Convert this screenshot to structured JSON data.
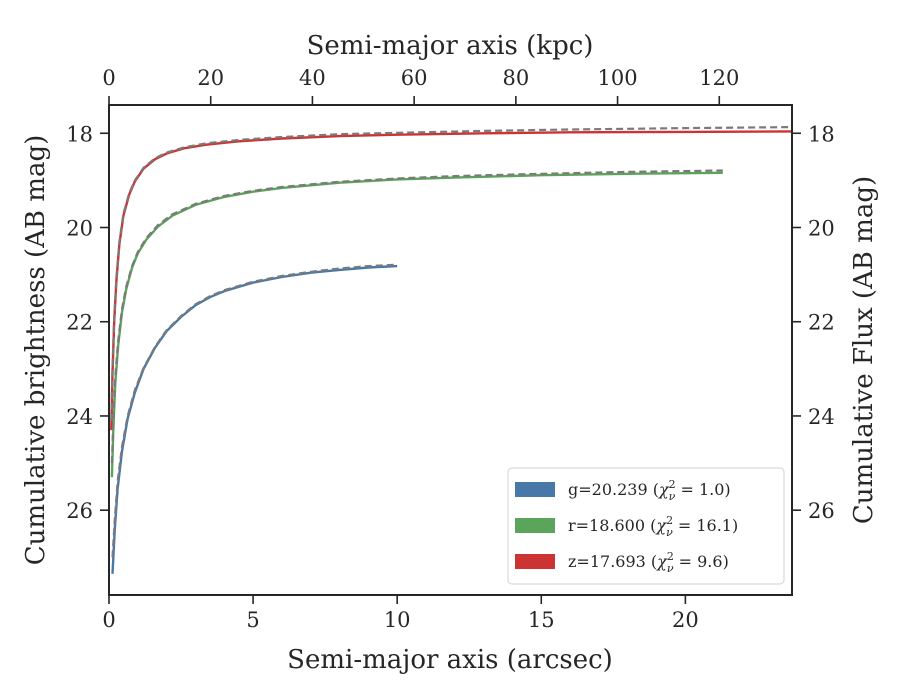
{
  "chart_data": {
    "type": "line",
    "xlabel": "Semi-major axis (arcsec)",
    "ylabel": "Cumulative brightness (AB mag)",
    "x2label": "Semi-major axis (kpc)",
    "y2label": "Cumulative Flux (AB mag)",
    "xlim": [
      0,
      23.7
    ],
    "ylim": [
      27.8,
      17.4
    ],
    "x2lim": [
      0,
      134.3
    ],
    "y_inverted": true,
    "x_ticks": [
      0,
      5,
      10,
      15,
      20
    ],
    "x_tick_labels": [
      "0",
      "5",
      "10",
      "15",
      "20"
    ],
    "x2_ticks": [
      0,
      20,
      40,
      60,
      80,
      100,
      120
    ],
    "x2_tick_labels": [
      "0",
      "20",
      "40",
      "60",
      "80",
      "100",
      "120"
    ],
    "y_ticks": [
      18,
      20,
      22,
      24,
      26
    ],
    "y_tick_labels": [
      "18",
      "20",
      "22",
      "24",
      "26"
    ],
    "grid": false,
    "legend_position": "lower-right",
    "series": [
      {
        "name": "g=20.239",
        "chi_label": "χ²ν = 1.0",
        "color": "#4878a8",
        "x": [
          0.12,
          0.2,
          0.3,
          0.45,
          0.65,
          0.9,
          1.2,
          1.6,
          2.0,
          2.5,
          3.0,
          3.5,
          4.0,
          5.0,
          6.0,
          7.0,
          8.0,
          9.0,
          10.0
        ],
        "y": [
          27.35,
          26.4,
          25.55,
          24.75,
          24.05,
          23.5,
          23.0,
          22.55,
          22.2,
          21.9,
          21.65,
          21.48,
          21.35,
          21.17,
          21.05,
          20.96,
          20.9,
          20.85,
          20.82
        ],
        "model_x": [
          0.12,
          0.2,
          0.3,
          0.45,
          0.65,
          0.9,
          1.2,
          1.6,
          2.0,
          2.5,
          3.0,
          3.5,
          4.0,
          5.0,
          6.0,
          7.0,
          8.0,
          9.0,
          10.0
        ],
        "model_y": [
          27.0,
          26.2,
          25.4,
          24.65,
          24.0,
          23.45,
          22.98,
          22.53,
          22.18,
          21.88,
          21.63,
          21.46,
          21.33,
          21.15,
          21.03,
          20.94,
          20.87,
          20.82,
          20.79
        ]
      },
      {
        "name": "r=18.600",
        "chi_label": "χ²ν = 16.1",
        "color": "#5aa55a",
        "x": [
          0.1,
          0.15,
          0.22,
          0.32,
          0.45,
          0.6,
          0.8,
          1.0,
          1.3,
          1.7,
          2.2,
          3.0,
          4.0,
          5.0,
          6.0,
          8.0,
          10.0,
          12.0,
          15.0,
          18.0,
          21.3
        ],
        "y": [
          25.3,
          24.3,
          23.3,
          22.5,
          21.8,
          21.3,
          20.85,
          20.55,
          20.25,
          19.98,
          19.75,
          19.52,
          19.35,
          19.24,
          19.16,
          19.05,
          18.98,
          18.94,
          18.89,
          18.86,
          18.84
        ],
        "model_x": [
          0.1,
          0.15,
          0.22,
          0.32,
          0.45,
          0.6,
          0.8,
          1.0,
          1.3,
          1.7,
          2.2,
          3.0,
          4.0,
          5.0,
          6.0,
          8.0,
          10.0,
          12.0,
          15.0,
          18.0,
          21.3
        ],
        "model_y": [
          25.0,
          24.1,
          23.15,
          22.4,
          21.73,
          21.25,
          20.82,
          20.52,
          20.22,
          19.95,
          19.72,
          19.5,
          19.33,
          19.22,
          19.14,
          19.03,
          18.96,
          18.91,
          18.86,
          18.82,
          18.79
        ]
      },
      {
        "name": "z=17.693",
        "chi_label": "χ²ν = 9.6",
        "color": "#cc3333",
        "x": [
          0.08,
          0.12,
          0.18,
          0.26,
          0.36,
          0.5,
          0.7,
          0.9,
          1.2,
          1.6,
          2.0,
          2.6,
          3.4,
          4.5,
          6.0,
          8.0,
          10.0,
          13.0,
          16.0,
          20.0,
          23.7
        ],
        "y": [
          24.3,
          23.1,
          22.0,
          21.1,
          20.35,
          19.75,
          19.3,
          19.02,
          18.75,
          18.55,
          18.43,
          18.32,
          18.24,
          18.17,
          18.11,
          18.06,
          18.03,
          18.0,
          17.98,
          17.97,
          17.96
        ],
        "model_x": [
          0.08,
          0.12,
          0.18,
          0.26,
          0.36,
          0.5,
          0.7,
          0.9,
          1.2,
          1.6,
          2.0,
          2.6,
          3.4,
          4.5,
          6.0,
          8.0,
          10.0,
          13.0,
          16.0,
          20.0,
          23.7
        ],
        "model_y": [
          24.1,
          22.95,
          21.9,
          21.03,
          20.3,
          19.71,
          19.27,
          19.0,
          18.73,
          18.53,
          18.41,
          18.3,
          18.21,
          18.14,
          18.08,
          18.02,
          17.99,
          17.95,
          17.92,
          17.89,
          17.87
        ]
      }
    ],
    "model_style": {
      "color": "#7a7a7a",
      "dash": "dashed"
    }
  },
  "legend": {
    "entries": [
      {
        "prefix": "g=20.239 (",
        "chi": "χ",
        "sub": "ν",
        "sup": "2",
        "rest": " = 1.0)",
        "color": "#4878a8"
      },
      {
        "prefix": "r=18.600 (",
        "chi": "χ",
        "sub": "ν",
        "sup": "2",
        "rest": " = 16.1)",
        "color": "#5aa55a"
      },
      {
        "prefix": "z=17.693 (",
        "chi": "χ",
        "sub": "ν",
        "sup": "2",
        "rest": " = 9.6)",
        "color": "#cc3333"
      }
    ]
  }
}
